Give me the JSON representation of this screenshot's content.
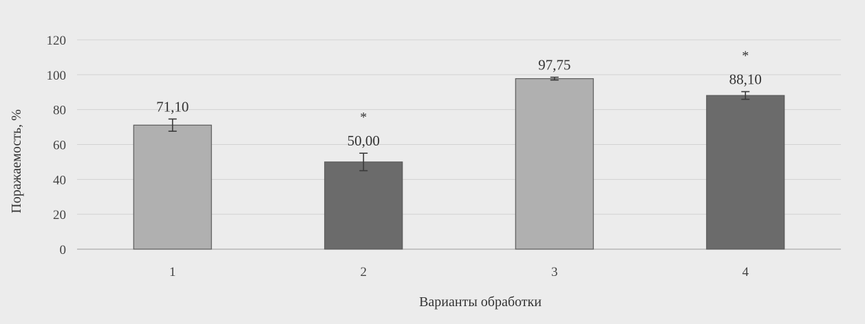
{
  "chart_data": {
    "type": "bar",
    "categories": [
      "1",
      "2",
      "3",
      "4"
    ],
    "values": [
      71.1,
      50.0,
      97.75,
      88.1
    ],
    "value_labels": [
      "71,10",
      "50,00",
      "97,75",
      "88,10"
    ],
    "error_bars": [
      3.5,
      5.0,
      0.8,
      2.2
    ],
    "significance_marks": [
      "",
      "*",
      "",
      "*"
    ],
    "bar_colors": [
      "#b0b0b0",
      "#6b6b6b",
      "#b0b0b0",
      "#6b6b6b"
    ],
    "y_ticks": [
      "0",
      "20",
      "40",
      "60",
      "80",
      "100",
      "120"
    ],
    "ylim": [
      0,
      120
    ],
    "ylabel": "Поражаемость, %",
    "xlabel": "Варианты обработки",
    "title": "",
    "grid": true,
    "legend": "none"
  },
  "colors": {
    "background": "#ececec",
    "grid": "#d2d2d2"
  }
}
